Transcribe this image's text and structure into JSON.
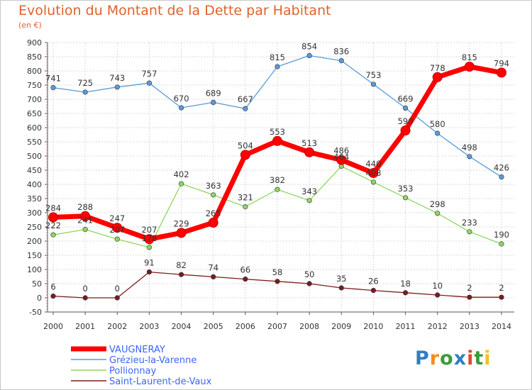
{
  "title": "Evolution du Montant de la Dette par Habitant",
  "unit_label": "(en €)",
  "logo": {
    "letters": [
      "P",
      "r",
      "o",
      "x",
      "i",
      "t",
      "i"
    ],
    "colors": [
      "#2f7fc1",
      "#f28c1e",
      "#3b9b3b",
      "#2f7fc1",
      "#e4452a",
      "#3b9b3b",
      "#f2c21e"
    ]
  },
  "chart_data": {
    "type": "line",
    "title": "Evolution du Montant de la Dette par Habitant",
    "ylabel": "(en €)",
    "xlabel": "",
    "x": [
      "2000",
      "2001",
      "2002",
      "2003",
      "2004",
      "2005",
      "2006",
      "2007",
      "2008",
      "2009",
      "2010",
      "2011",
      "2012",
      "2013",
      "2014"
    ],
    "ylim": [
      -50,
      900
    ],
    "yticks": [
      -50,
      0,
      50,
      100,
      150,
      200,
      250,
      300,
      350,
      400,
      450,
      500,
      550,
      600,
      650,
      700,
      750,
      800,
      850,
      900
    ],
    "grid": true,
    "legend_position": "bottom-left",
    "series": [
      {
        "name": "Grézieu-la-Varenne",
        "color": "#5b9bd5",
        "values": [
          741,
          725,
          743,
          757,
          670,
          689,
          667,
          815,
          854,
          836,
          753,
          669,
          580,
          498,
          426
        ]
      },
      {
        "name": "Pollionnay",
        "color": "#8fd660",
        "values": [
          222,
          241,
          207,
          178,
          402,
          363,
          321,
          382,
          343,
          464,
          408,
          353,
          298,
          233,
          190
        ]
      },
      {
        "name": "Saint-Laurent-de-Vaux",
        "color": "#7a1c1c",
        "values": [
          6,
          0,
          0,
          91,
          82,
          74,
          66,
          58,
          50,
          35,
          26,
          18,
          10,
          2,
          2
        ]
      },
      {
        "name": "VAUGNERAY",
        "color": "#ff0000",
        "values": [
          284,
          288,
          247,
          207,
          229,
          265,
          504,
          553,
          513,
          486,
          440,
          590,
          778,
          815,
          794
        ]
      }
    ]
  }
}
